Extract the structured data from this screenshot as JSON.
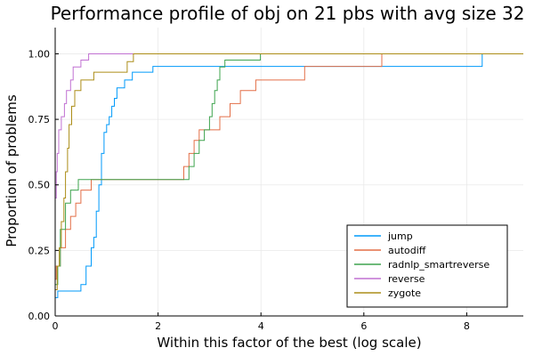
{
  "chart_data": {
    "type": "line",
    "title": "Performance profile of obj on 21 pbs with avg size 32",
    "xlabel": "Within this factor of the best (log scale)",
    "ylabel": "Proportion of problems",
    "xlim": [
      0,
      9.1
    ],
    "ylim": [
      0,
      1.1
    ],
    "x_ticks": [
      0,
      2,
      4,
      6,
      8
    ],
    "x_tick_labels": [
      "0",
      "2",
      "4",
      "6",
      "8"
    ],
    "y_ticks": [
      0,
      0.25,
      0.5,
      0.75,
      1.0
    ],
    "y_tick_labels": [
      "0.00",
      "0.25",
      "0.50",
      "0.75",
      "1.00"
    ],
    "grid": true,
    "legend_position": "bottom-right",
    "series": [
      {
        "name": "jump",
        "color": "#009AFA",
        "points": [
          [
            0,
            0.07
          ],
          [
            0.05,
            0.07
          ],
          [
            0.05,
            0.095
          ],
          [
            0.5,
            0.095
          ],
          [
            0.5,
            0.12
          ],
          [
            0.6,
            0.12
          ],
          [
            0.6,
            0.19
          ],
          [
            0.7,
            0.19
          ],
          [
            0.7,
            0.26
          ],
          [
            0.75,
            0.26
          ],
          [
            0.75,
            0.3
          ],
          [
            0.8,
            0.3
          ],
          [
            0.8,
            0.4
          ],
          [
            0.85,
            0.4
          ],
          [
            0.85,
            0.5
          ],
          [
            0.9,
            0.5
          ],
          [
            0.9,
            0.62
          ],
          [
            0.95,
            0.62
          ],
          [
            0.95,
            0.7
          ],
          [
            1.0,
            0.7
          ],
          [
            1.0,
            0.73
          ],
          [
            1.05,
            0.73
          ],
          [
            1.05,
            0.76
          ],
          [
            1.1,
            0.76
          ],
          [
            1.1,
            0.8
          ],
          [
            1.15,
            0.8
          ],
          [
            1.15,
            0.83
          ],
          [
            1.2,
            0.83
          ],
          [
            1.2,
            0.87
          ],
          [
            1.35,
            0.87
          ],
          [
            1.35,
            0.9
          ],
          [
            1.5,
            0.9
          ],
          [
            1.5,
            0.93
          ],
          [
            1.9,
            0.93
          ],
          [
            1.9,
            0.952
          ],
          [
            8.3,
            0.952
          ],
          [
            8.3,
            1.0
          ],
          [
            9.1,
            1.0
          ]
        ]
      },
      {
        "name": "autodiff",
        "color": "#E36F47",
        "points": [
          [
            0,
            0.14
          ],
          [
            0.02,
            0.14
          ],
          [
            0.02,
            0.19
          ],
          [
            0.1,
            0.19
          ],
          [
            0.1,
            0.26
          ],
          [
            0.2,
            0.26
          ],
          [
            0.2,
            0.33
          ],
          [
            0.3,
            0.33
          ],
          [
            0.3,
            0.38
          ],
          [
            0.4,
            0.38
          ],
          [
            0.4,
            0.43
          ],
          [
            0.5,
            0.43
          ],
          [
            0.5,
            0.48
          ],
          [
            0.7,
            0.48
          ],
          [
            0.7,
            0.52
          ],
          [
            2.5,
            0.52
          ],
          [
            2.5,
            0.57
          ],
          [
            2.6,
            0.57
          ],
          [
            2.6,
            0.62
          ],
          [
            2.7,
            0.62
          ],
          [
            2.7,
            0.67
          ],
          [
            2.8,
            0.67
          ],
          [
            2.8,
            0.71
          ],
          [
            3.2,
            0.71
          ],
          [
            3.2,
            0.76
          ],
          [
            3.4,
            0.76
          ],
          [
            3.4,
            0.81
          ],
          [
            3.6,
            0.81
          ],
          [
            3.6,
            0.86
          ],
          [
            3.9,
            0.86
          ],
          [
            3.9,
            0.9
          ],
          [
            4.85,
            0.9
          ],
          [
            4.85,
            0.952
          ],
          [
            6.35,
            0.952
          ],
          [
            6.35,
            1.0
          ],
          [
            9.1,
            1.0
          ]
        ]
      },
      {
        "name": "radnlp_smartreverse",
        "color": "#3EA44E",
        "points": [
          [
            0,
            0.12
          ],
          [
            0.05,
            0.12
          ],
          [
            0.05,
            0.19
          ],
          [
            0.1,
            0.19
          ],
          [
            0.1,
            0.33
          ],
          [
            0.2,
            0.33
          ],
          [
            0.2,
            0.43
          ],
          [
            0.3,
            0.43
          ],
          [
            0.3,
            0.48
          ],
          [
            0.45,
            0.48
          ],
          [
            0.45,
            0.52
          ],
          [
            2.6,
            0.52
          ],
          [
            2.6,
            0.57
          ],
          [
            2.7,
            0.57
          ],
          [
            2.7,
            0.62
          ],
          [
            2.8,
            0.62
          ],
          [
            2.8,
            0.67
          ],
          [
            2.9,
            0.67
          ],
          [
            2.9,
            0.71
          ],
          [
            3.0,
            0.71
          ],
          [
            3.0,
            0.76
          ],
          [
            3.05,
            0.76
          ],
          [
            3.05,
            0.81
          ],
          [
            3.1,
            0.81
          ],
          [
            3.1,
            0.86
          ],
          [
            3.15,
            0.86
          ],
          [
            3.15,
            0.9
          ],
          [
            3.2,
            0.9
          ],
          [
            3.2,
            0.95
          ],
          [
            3.3,
            0.95
          ],
          [
            3.3,
            0.976
          ],
          [
            3.99,
            0.976
          ],
          [
            3.99,
            1.0
          ],
          [
            9.1,
            1.0
          ]
        ]
      },
      {
        "name": "reverse",
        "color": "#C171D2",
        "points": [
          [
            0,
            0.45
          ],
          [
            0.02,
            0.45
          ],
          [
            0.02,
            0.55
          ],
          [
            0.04,
            0.55
          ],
          [
            0.04,
            0.62
          ],
          [
            0.07,
            0.62
          ],
          [
            0.07,
            0.71
          ],
          [
            0.12,
            0.71
          ],
          [
            0.12,
            0.76
          ],
          [
            0.18,
            0.76
          ],
          [
            0.18,
            0.81
          ],
          [
            0.22,
            0.81
          ],
          [
            0.22,
            0.86
          ],
          [
            0.3,
            0.86
          ],
          [
            0.3,
            0.9
          ],
          [
            0.35,
            0.9
          ],
          [
            0.35,
            0.95
          ],
          [
            0.5,
            0.95
          ],
          [
            0.5,
            0.976
          ],
          [
            0.65,
            0.976
          ],
          [
            0.65,
            1.0
          ],
          [
            9.1,
            1.0
          ]
        ]
      },
      {
        "name": "zygote",
        "color": "#AC8D18",
        "points": [
          [
            0,
            0.1
          ],
          [
            0.04,
            0.1
          ],
          [
            0.04,
            0.19
          ],
          [
            0.08,
            0.19
          ],
          [
            0.08,
            0.26
          ],
          [
            0.12,
            0.26
          ],
          [
            0.12,
            0.36
          ],
          [
            0.17,
            0.36
          ],
          [
            0.17,
            0.45
          ],
          [
            0.2,
            0.45
          ],
          [
            0.2,
            0.55
          ],
          [
            0.24,
            0.55
          ],
          [
            0.24,
            0.64
          ],
          [
            0.27,
            0.64
          ],
          [
            0.27,
            0.73
          ],
          [
            0.32,
            0.73
          ],
          [
            0.32,
            0.8
          ],
          [
            0.38,
            0.8
          ],
          [
            0.38,
            0.86
          ],
          [
            0.5,
            0.86
          ],
          [
            0.5,
            0.9
          ],
          [
            0.75,
            0.9
          ],
          [
            0.75,
            0.93
          ],
          [
            1.4,
            0.93
          ],
          [
            1.4,
            0.97
          ],
          [
            1.52,
            0.97
          ],
          [
            1.52,
            1.0
          ],
          [
            9.1,
            1.0
          ]
        ]
      }
    ]
  }
}
